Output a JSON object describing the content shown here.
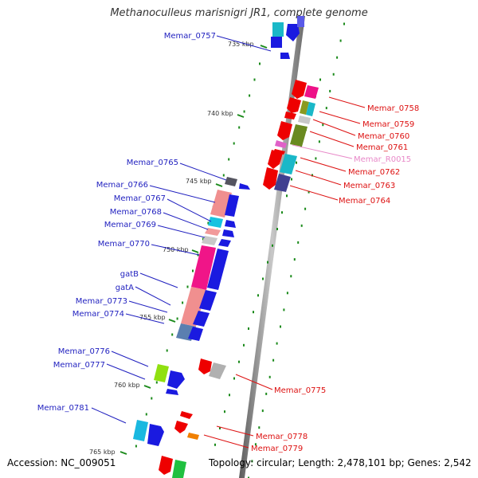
{
  "title": "Methanoculleus marisnigri JR1, complete genome",
  "footer": {
    "accession": "Accession: NC_009051",
    "summary": "Topology: circular; Length: 2,478,101 bp; Genes: 2,542"
  },
  "colors": {
    "left_label": "#1f1fbf",
    "right_label": "#dd1111",
    "rna_label": "#e888c8",
    "backbone": "#7a7a7a",
    "tick_dots": "#1a8a1a"
  },
  "ruler_ticks": [
    {
      "label": "735 kbp"
    },
    {
      "label": "740 kbp"
    },
    {
      "label": "745 kbp"
    },
    {
      "label": "750 kbp"
    },
    {
      "label": "755 kbp"
    },
    {
      "label": "760 kbp"
    },
    {
      "label": "765 kbp"
    }
  ],
  "left_genes": [
    {
      "label": "Memar_0757"
    },
    {
      "label": "Memar_0765"
    },
    {
      "label": "Memar_0766"
    },
    {
      "label": "Memar_0767"
    },
    {
      "label": "Memar_0768"
    },
    {
      "label": "Memar_0769"
    },
    {
      "label": "Memar_0770"
    },
    {
      "label": "gatB"
    },
    {
      "label": "gatA"
    },
    {
      "label": "Memar_0773"
    },
    {
      "label": "Memar_0774"
    },
    {
      "label": "Memar_0776"
    },
    {
      "label": "Memar_0777"
    },
    {
      "label": "Memar_0781"
    }
  ],
  "right_genes": [
    {
      "label": "Memar_0758"
    },
    {
      "label": "Memar_0759"
    },
    {
      "label": "Memar_0760"
    },
    {
      "label": "Memar_0761"
    },
    {
      "label": "Memar_R0015"
    },
    {
      "label": "Memar_0762"
    },
    {
      "label": "Memar_0763"
    },
    {
      "label": "Memar_0764"
    },
    {
      "label": "Memar_0775"
    },
    {
      "label": "Memar_0778"
    },
    {
      "label": "Memar_0779"
    }
  ]
}
